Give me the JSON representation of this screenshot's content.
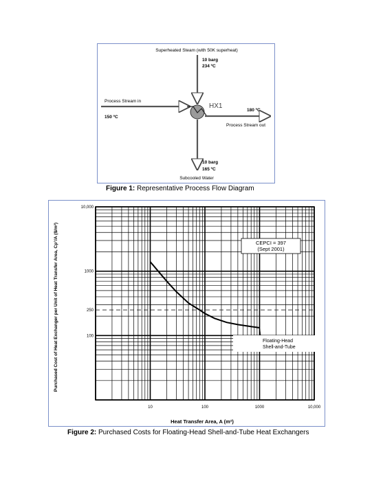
{
  "figure1": {
    "top_label": "Superheated Steam (with 50K superheat)",
    "steam_in_pressure": "10 barg",
    "steam_in_temp": "234 ºC",
    "process_in_label": "Process Stream in",
    "process_in_temp": "150 ºC",
    "hx_label": "HX1",
    "process_out_temp": "180 ºC",
    "process_out_label": "Process Stream out",
    "steam_out_pressure": "10 barg",
    "steam_out_temp": "165 ºC",
    "bottom_label": "Subcooled Water",
    "caption_bold": "Figure 1:",
    "caption_text": " Representative Process Flow Diagram"
  },
  "figure2": {
    "caption_bold": "Figure 2:",
    "caption_text": " Purchased Costs for Floating-Head Shell-and-Tube Heat Exchangers",
    "cepci_line1": "CEPCI = 397",
    "cepci_line2": "(Sept 2001)",
    "curve_label_1": "Floating-Head",
    "curve_label_2": "Shell-and-Tube",
    "dashed_marker_y": 250
  },
  "chart_data": {
    "type": "line",
    "title": "",
    "xlabel": "Heat Transfer Area,  A (m²)",
    "ylabel": "Purchased Cost of Heat Exchanger per Unit of Heat Transfer Area,  Cp°/A ($/m²)",
    "xscale": "log",
    "yscale": "log",
    "xlim": [
      1,
      10000
    ],
    "ylim": [
      10,
      10000
    ],
    "x_tick_labels": [
      "10",
      "100",
      "1000",
      "10,000"
    ],
    "y_tick_labels": [
      "100",
      "250",
      "1000",
      "10,000"
    ],
    "series": [
      {
        "name": "Floating-Head Shell-and-Tube",
        "x": [
          10,
          14,
          20,
          30,
          50,
          80,
          100,
          150,
          250,
          400,
          700,
          1000
        ],
        "y": [
          1400,
          1000,
          700,
          480,
          320,
          250,
          220,
          185,
          160,
          148,
          138,
          132
        ]
      }
    ],
    "grid": true
  }
}
